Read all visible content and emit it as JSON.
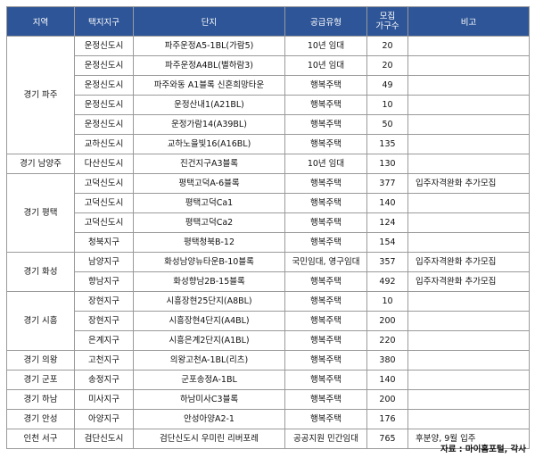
{
  "headers": {
    "region": "지역",
    "district": "택지지구",
    "complex": "단지",
    "type": "공급유형",
    "units_line1": "모집",
    "units_line2": "가구수",
    "note": "비고"
  },
  "rows": [
    {
      "region": "경기 파주",
      "region_span": 6,
      "district": "운정신도시",
      "complex": "파주운정A5-1BL(가람5)",
      "type": "10년 임대",
      "units": "20",
      "note": ""
    },
    {
      "district": "운정신도시",
      "complex": "파주운정A4BL(별하람3)",
      "type": "10년 임대",
      "units": "20",
      "note": ""
    },
    {
      "district": "운정신도시",
      "complex": "파주와동 A1블록 신혼희망타운",
      "type": "행복주택",
      "units": "49",
      "note": ""
    },
    {
      "district": "운정신도시",
      "complex": "운정산내1(A21BL)",
      "type": "행복주택",
      "units": "10",
      "note": ""
    },
    {
      "district": "운정신도시",
      "complex": "운정가람14(A39BL)",
      "type": "행복주택",
      "units": "50",
      "note": ""
    },
    {
      "district": "교하신도시",
      "complex": "교하노을빛16(A16BL)",
      "type": "행복주택",
      "units": "135",
      "note": ""
    },
    {
      "region": "경기 남양주",
      "region_span": 1,
      "district": "다산신도시",
      "complex": "진건지구A3블록",
      "type": "10년 임대",
      "units": "130",
      "note": ""
    },
    {
      "region": "경기 평택",
      "region_span": 4,
      "district": "고덕신도시",
      "complex": "평택고덕A-6블록",
      "type": "행복주택",
      "units": "377",
      "note": "입주자격완화 추가모집"
    },
    {
      "district": "고덕신도시",
      "complex": "평택고덕Ca1",
      "type": "행복주택",
      "units": "140",
      "note": ""
    },
    {
      "district": "고덕신도시",
      "complex": "평택고덕Ca2",
      "type": "행복주택",
      "units": "124",
      "note": ""
    },
    {
      "district": "청북지구",
      "complex": "평택청북B-12",
      "type": "행복주택",
      "units": "154",
      "note": ""
    },
    {
      "region": "경기 화성",
      "region_span": 2,
      "district": "남양지구",
      "complex": "화성남양뉴타운B-10블록",
      "type": "국민임대, 영구임대",
      "units": "357",
      "note": "입주자격완화 추가모집"
    },
    {
      "district": "향남지구",
      "complex": "화성향남2B-15블록",
      "type": "행복주택",
      "units": "492",
      "note": "입주자격완화 추가모집"
    },
    {
      "region": "경기 시흥",
      "region_span": 3,
      "district": "장현지구",
      "complex": "시흥장현25단지(A8BL)",
      "type": "행복주택",
      "units": "10",
      "note": ""
    },
    {
      "district": "장현지구",
      "complex": "시흥장현4단지(A4BL)",
      "type": "행복주택",
      "units": "200",
      "note": ""
    },
    {
      "district": "은계지구",
      "complex": "시흥은계2단지(A1BL)",
      "type": "행복주택",
      "units": "220",
      "note": ""
    },
    {
      "region": "경기 의왕",
      "region_span": 1,
      "district": "고천지구",
      "complex": "의왕고천A-1BL(리츠)",
      "type": "행복주택",
      "units": "380",
      "note": ""
    },
    {
      "region": "경기 군포",
      "region_span": 1,
      "district": "송정지구",
      "complex": "군포송정A-1BL",
      "type": "행복주택",
      "units": "140",
      "note": ""
    },
    {
      "region": "경기 하남",
      "region_span": 1,
      "district": "미사지구",
      "complex": "하남미사C3블록",
      "type": "행복주택",
      "units": "200",
      "note": ""
    },
    {
      "region": "경기 안성",
      "region_span": 1,
      "district": "아양지구",
      "complex": "안성아양A2-1",
      "type": "행복주택",
      "units": "176",
      "note": ""
    },
    {
      "region": "인천 서구",
      "region_span": 1,
      "district": "검단신도시",
      "complex": "검단신도시 우미린 리버포레",
      "type": "공공지원 민간임대",
      "units": "765",
      "note": "후분양, 9월 입주"
    }
  ],
  "source": "자료 : 마이홈포털, 각사"
}
